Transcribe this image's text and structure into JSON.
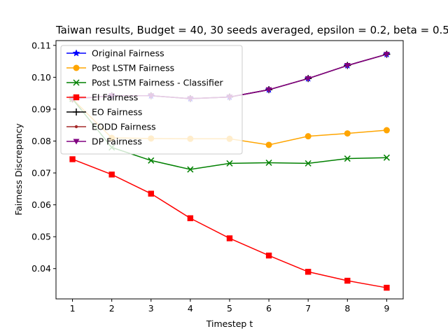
{
  "chart_data": {
    "type": "line",
    "title": "Taiwan results, Budget = 40, 30 seeds averaged, epsilon = 0.2, beta = 0.5",
    "xlabel": "Timestep t",
    "ylabel": "Fairness Discrepancy",
    "x": [
      1,
      2,
      3,
      4,
      5,
      6,
      7,
      8,
      9
    ],
    "xlim": [
      0.58,
      9.42
    ],
    "ylim": [
      0.0305,
      0.1115
    ],
    "xticks": [
      "1",
      "2",
      "3",
      "4",
      "5",
      "6",
      "7",
      "8",
      "9"
    ],
    "yticks": [
      "0.04",
      "0.05",
      "0.06",
      "0.07",
      "0.08",
      "0.09",
      "0.10",
      "0.11"
    ],
    "legend_position": "upper-left",
    "grid": false,
    "series": [
      {
        "name": "Original Fairness",
        "color": "#0000ff",
        "marker": "star",
        "values": [
          0.0932,
          0.0942,
          0.0942,
          0.0933,
          0.0938,
          0.0961,
          0.0996,
          0.1037,
          0.1072
        ]
      },
      {
        "name": "Post LSTM Fairness",
        "color": "#ffa500",
        "marker": "circle",
        "values": [
          0.0932,
          0.081,
          0.0808,
          0.0807,
          0.0807,
          0.0788,
          0.0815,
          0.0824,
          0.0834
        ]
      },
      {
        "name": "Post LSTM Fairness - Classifier",
        "color": "#008000",
        "marker": "x",
        "values": [
          0.0932,
          0.078,
          0.0739,
          0.0711,
          0.073,
          0.0732,
          0.073,
          0.0745,
          0.0748
        ]
      },
      {
        "name": "EI Fairness",
        "color": "#ff0000",
        "marker": "square",
        "values": [
          0.0743,
          0.0695,
          0.0635,
          0.0558,
          0.0495,
          0.0441,
          0.039,
          0.0362,
          0.034
        ]
      },
      {
        "name": "EO Fairness",
        "color": "#000000",
        "marker": "plus",
        "values": [
          0.0932,
          0.0942,
          0.0942,
          0.0933,
          0.0938,
          0.0961,
          0.0996,
          0.1037,
          0.1072
        ]
      },
      {
        "name": "EODD Fairness",
        "color": "#a52a2a",
        "marker": "dot",
        "values": [
          0.0932,
          0.0942,
          0.0942,
          0.0933,
          0.0938,
          0.0961,
          0.0996,
          0.1037,
          0.1072
        ]
      },
      {
        "name": "DP Fairness",
        "color": "#800080",
        "marker": "triangle-down",
        "values": [
          0.0932,
          0.0942,
          0.0942,
          0.0933,
          0.0938,
          0.0961,
          0.0996,
          0.1037,
          0.1072
        ]
      }
    ]
  }
}
